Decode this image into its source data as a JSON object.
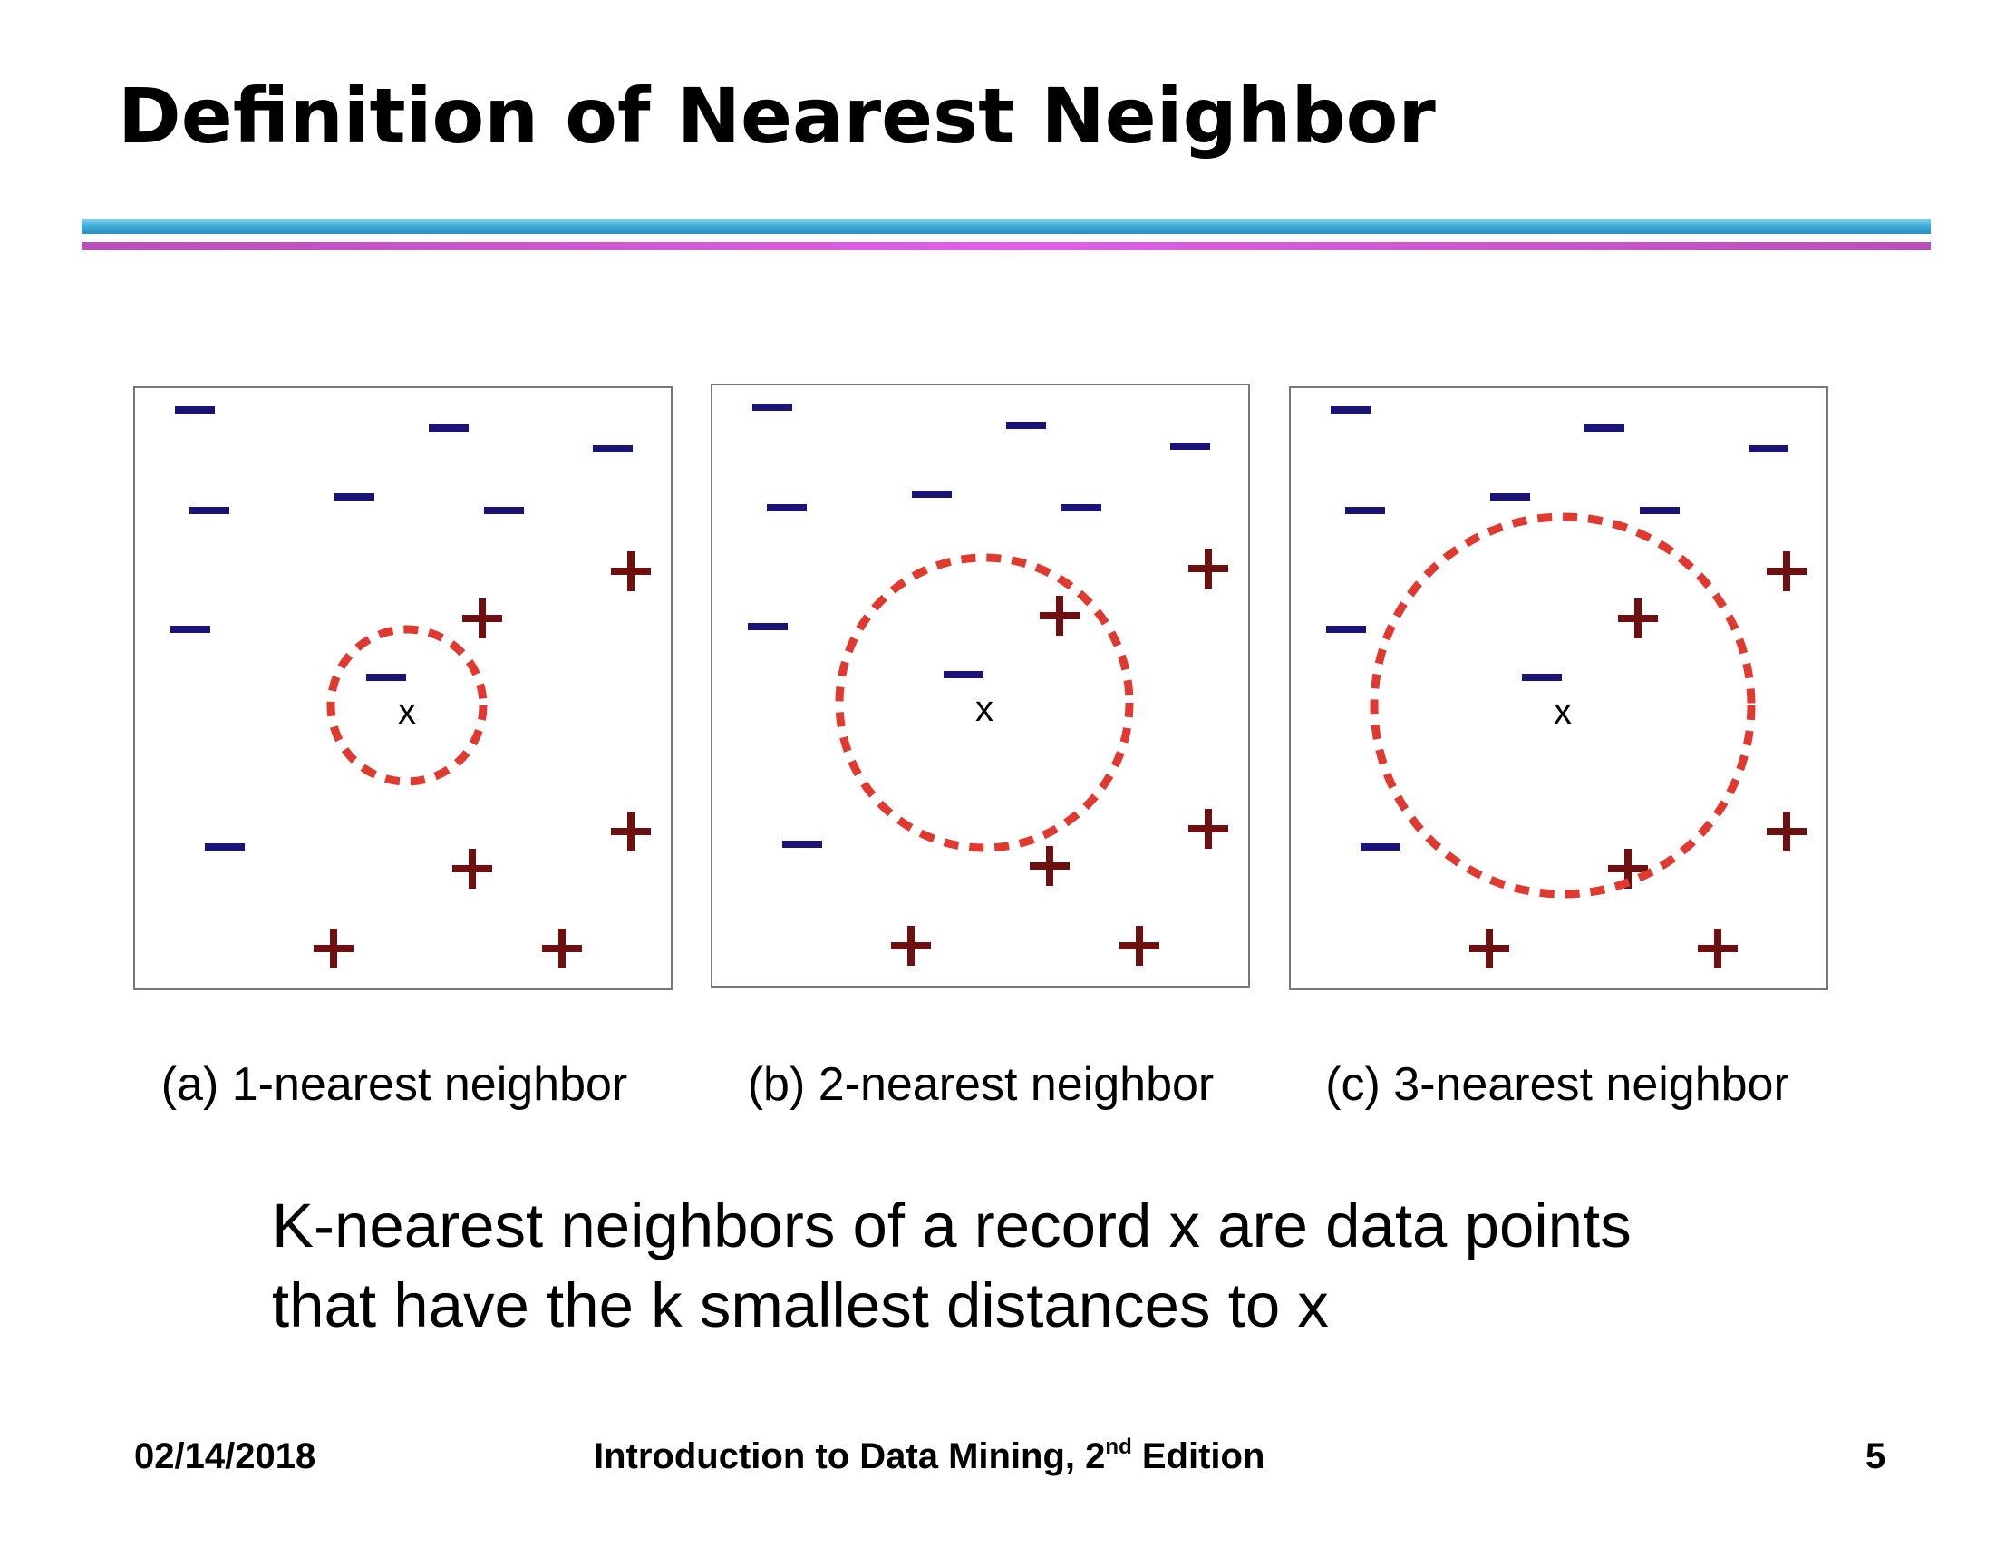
{
  "slide": {
    "title": "Definition of Nearest Neighbor"
  },
  "panels": [
    {
      "caption": "(a) 1-nearest neighbor",
      "query_label": "x",
      "k": 1
    },
    {
      "caption": "(b) 2-nearest neighbor",
      "query_label": "x",
      "k": 2
    },
    {
      "caption": "(c) 3-nearest neighbor",
      "query_label": "x",
      "k": 3
    }
  ],
  "definition": {
    "line1": "K-nearest neighbors of a record x are data points",
    "line2": "that have the k smallest distances to x"
  },
  "footer": {
    "date": "02/14/2018",
    "book_title": "Introduction to Data Mining, 2",
    "book_sup": "nd",
    "book_edition": " Edition",
    "page_number": "5"
  },
  "colors": {
    "negative": "#1a1478",
    "positive": "#6e1010",
    "circle": "#e03a30",
    "frame": "#777777",
    "rule_blue": "#3ea9d6",
    "rule_purple": "#d45ad8"
  }
}
